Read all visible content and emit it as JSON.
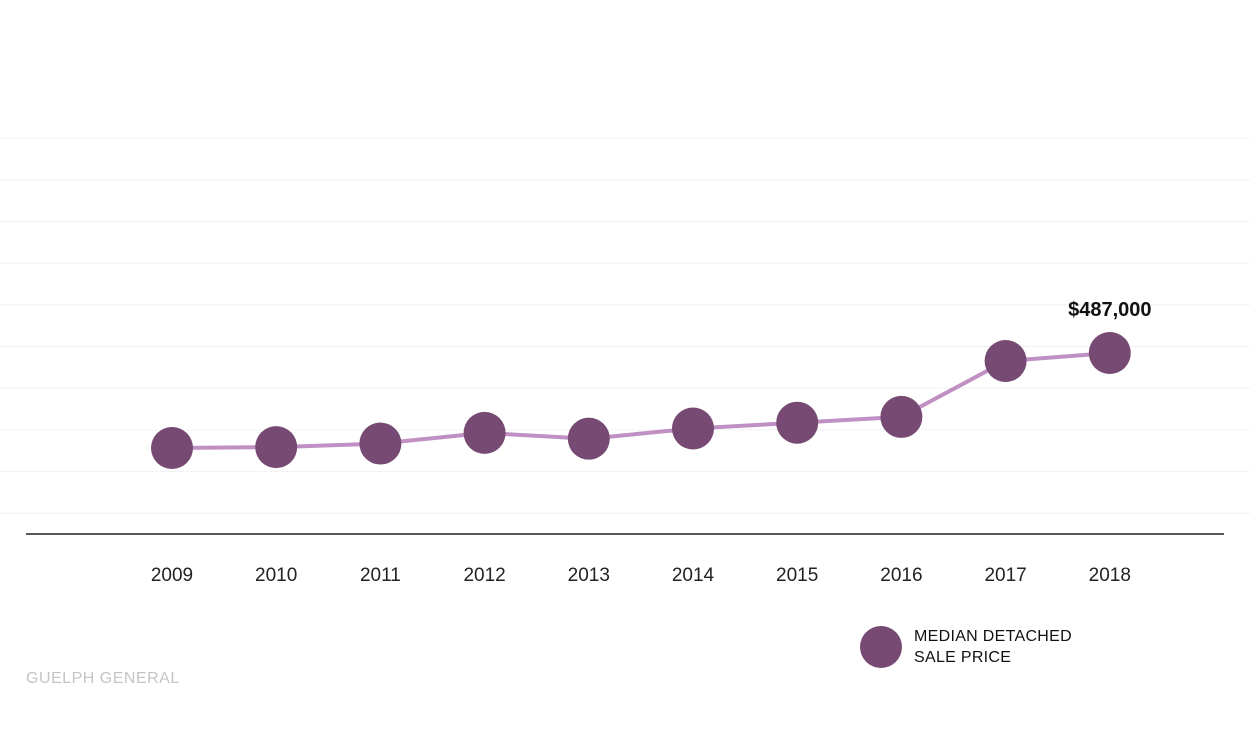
{
  "chart_data": {
    "type": "line",
    "categories": [
      "2009",
      "2010",
      "2011",
      "2012",
      "2013",
      "2014",
      "2015",
      "2016",
      "2017",
      "2018"
    ],
    "series": [
      {
        "name": "MEDIAN DETACHED SALE PRICE",
        "values": [
          273000,
          275000,
          283000,
          307000,
          294000,
          317000,
          330000,
          343000,
          469000,
          487000
        ]
      }
    ],
    "data_labels": [
      {
        "category": "2018",
        "text": "$487,000"
      }
    ],
    "grid": true,
    "legend": "bottom-right",
    "colors": {
      "line": "#c08fc3",
      "marker": "#774a73",
      "baseline": "#222222",
      "grid": "#f3f0f3"
    }
  },
  "legend": {
    "line1": "MEDIAN DETACHED",
    "line2": "SALE PRICE"
  },
  "source": "GUELPH GENERAL"
}
